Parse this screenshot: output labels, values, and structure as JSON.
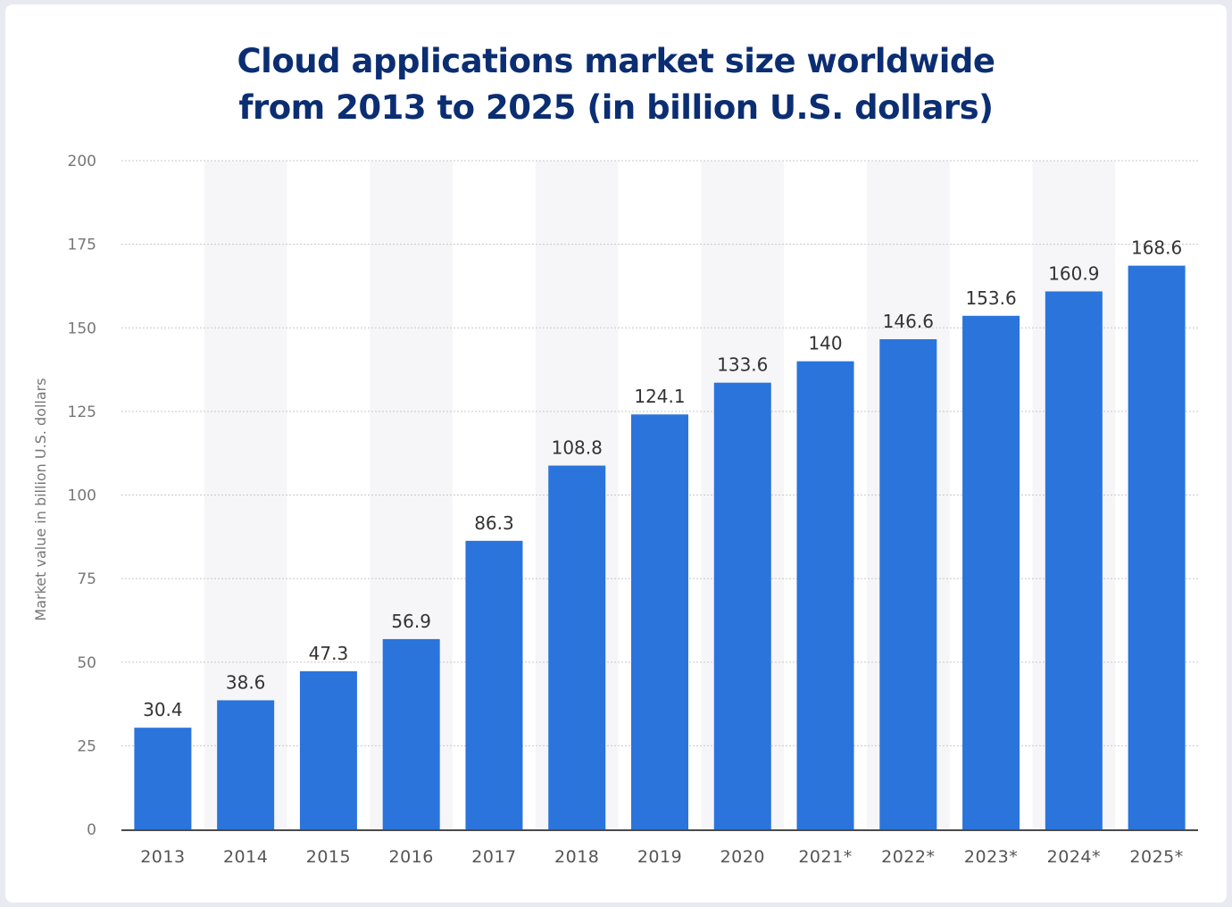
{
  "chart_data": {
    "type": "bar",
    "title_lines": [
      "Cloud applications market size worldwide",
      "from 2013 to 2025 (in billion U.S. dollars)"
    ],
    "ylabel": "Market value in billion U.S. dollars",
    "xlabel": "",
    "ylim": [
      0,
      200
    ],
    "yticks": [
      0,
      25,
      50,
      75,
      100,
      125,
      150,
      175,
      200
    ],
    "grid": true,
    "categories": [
      "2013",
      "2014",
      "2015",
      "2016",
      "2017",
      "2018",
      "2019",
      "2020",
      "2021*",
      "2022*",
      "2023*",
      "2024*",
      "2025*"
    ],
    "values": [
      30.4,
      38.6,
      47.3,
      56.9,
      86.3,
      108.8,
      124.1,
      133.6,
      140,
      146.6,
      153.6,
      160.9,
      168.6
    ],
    "value_labels": [
      "30.4",
      "38.6",
      "47.3",
      "56.9",
      "86.3",
      "108.8",
      "124.1",
      "133.6",
      "140",
      "146.6",
      "153.6",
      "160.9",
      "168.6"
    ],
    "bar_color": "#2a74dc",
    "title_color": "#0b2e73"
  }
}
